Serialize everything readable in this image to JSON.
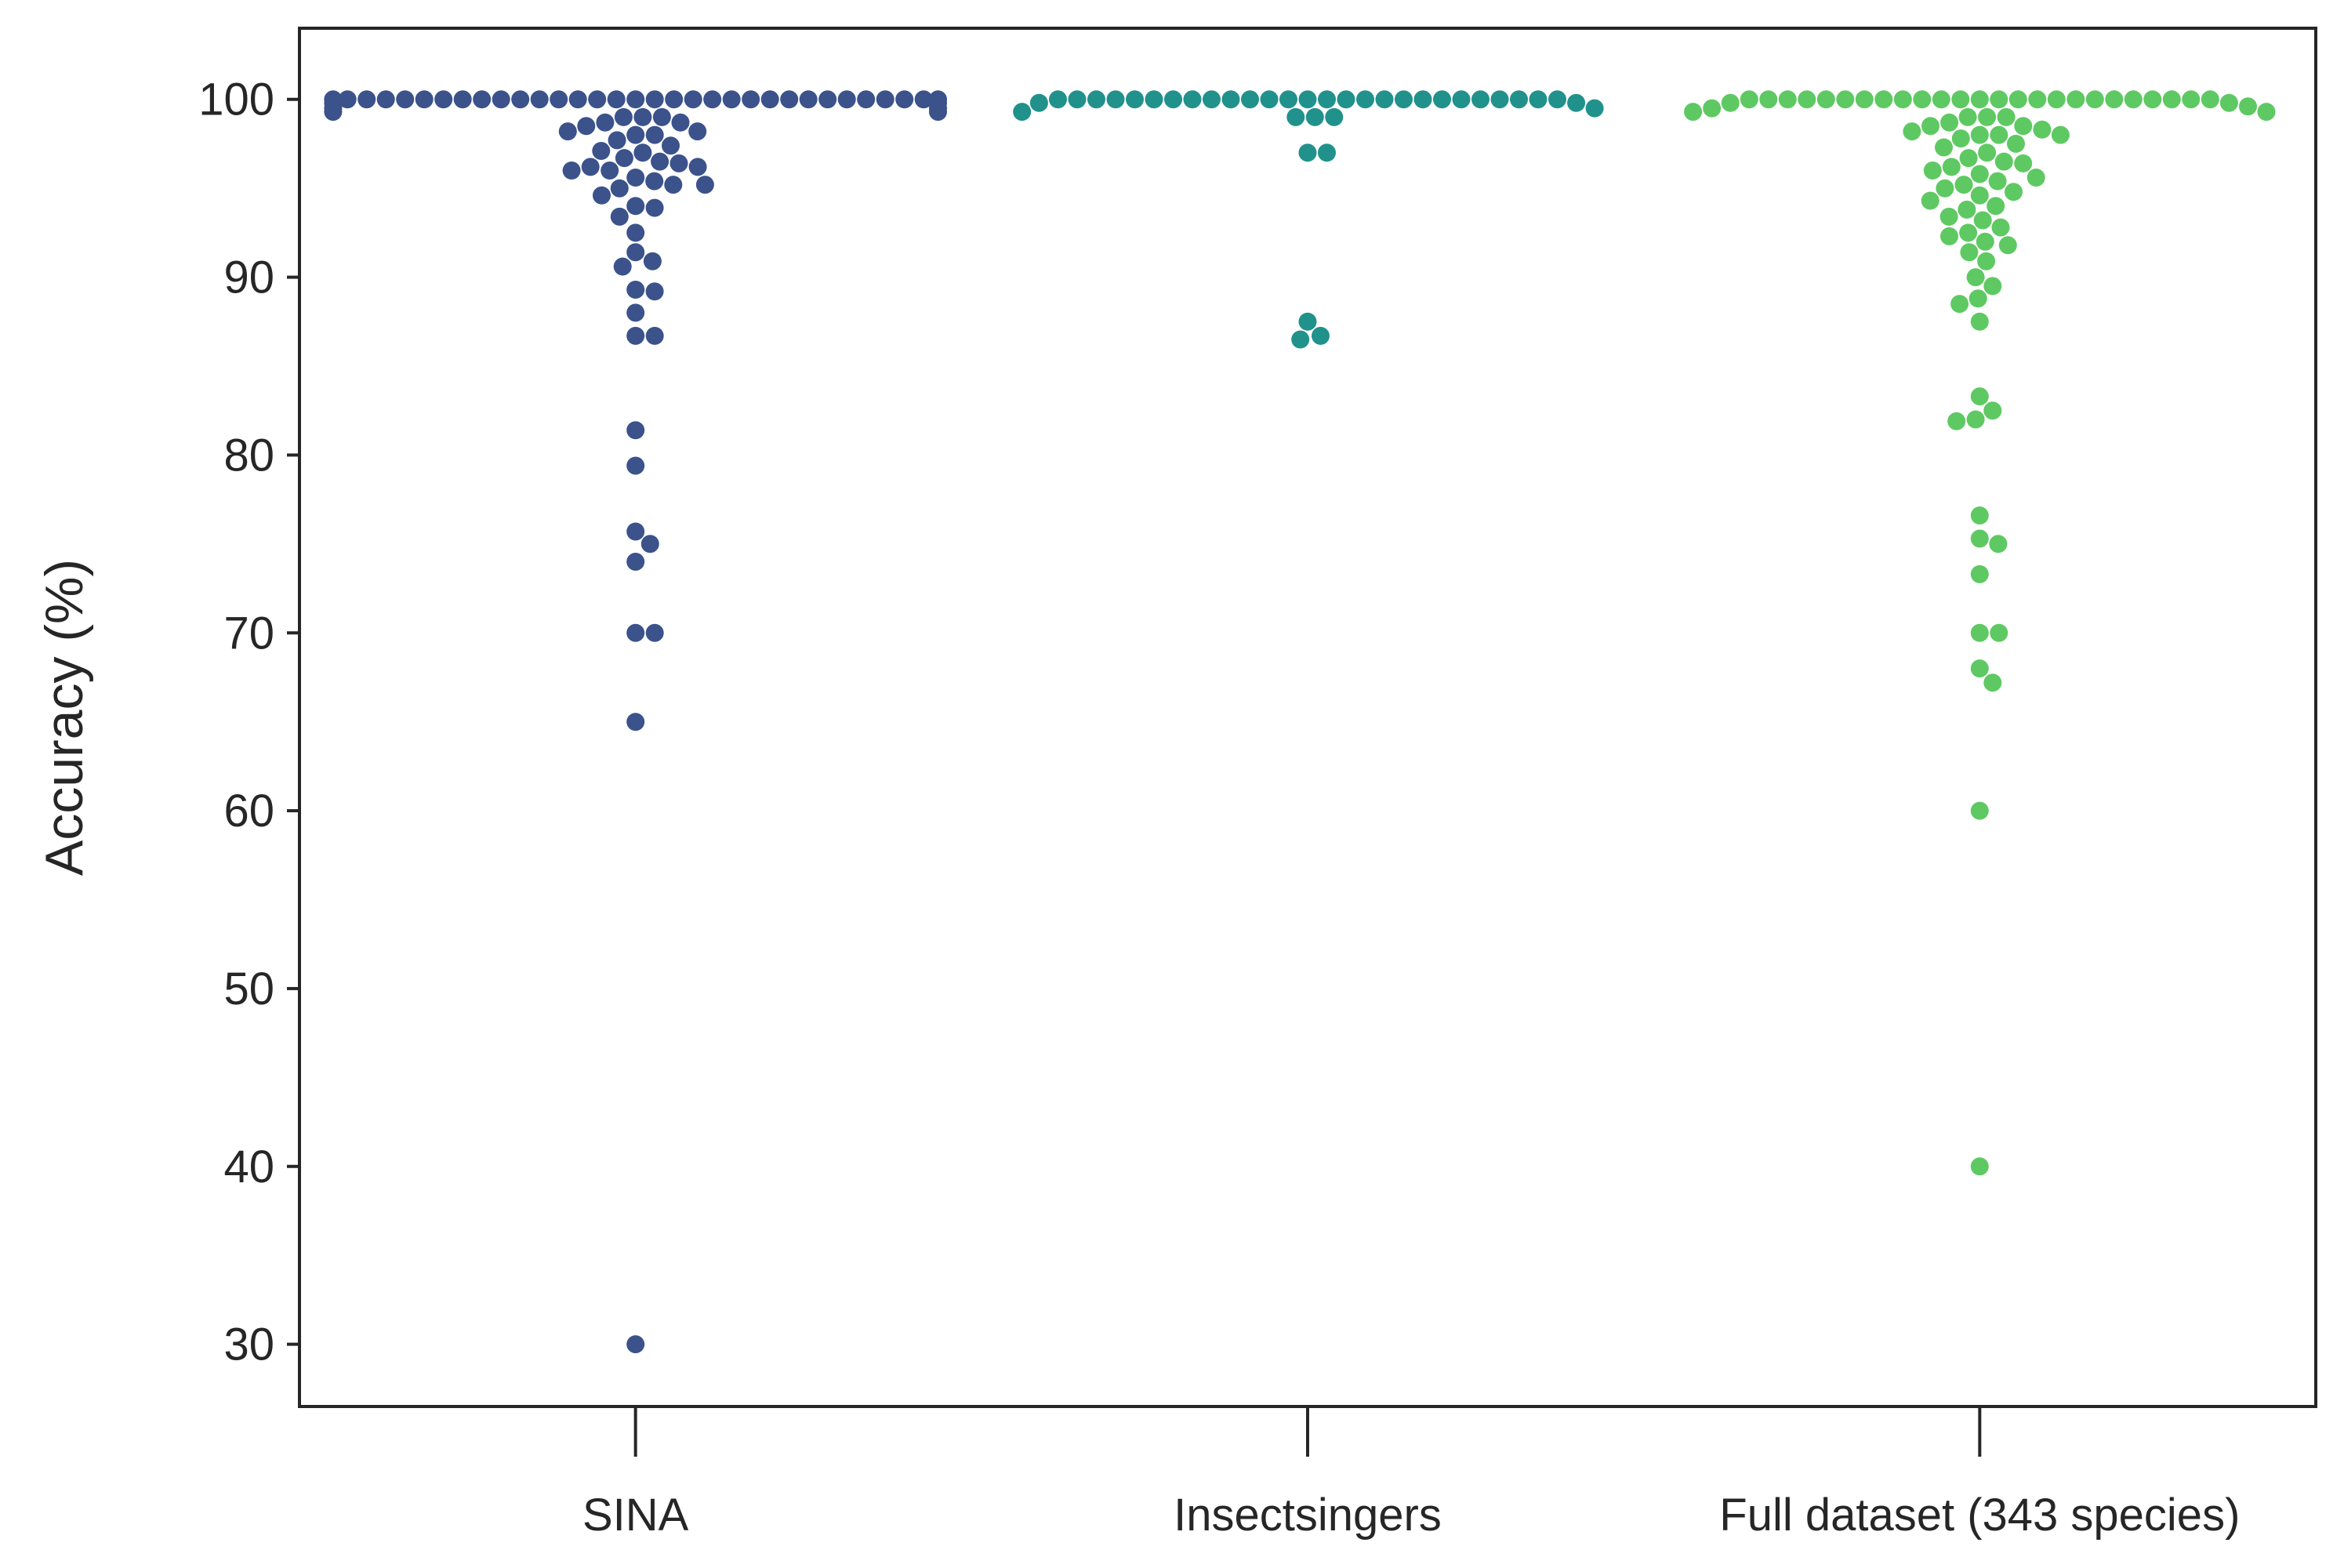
{
  "chart_data": {
    "type": "scatter",
    "subtype": "swarm",
    "ylabel": "Accuracy (%)",
    "xlabel": "",
    "ylim": [
      26.5,
      104
    ],
    "yticks": [
      30,
      40,
      50,
      60,
      70,
      80,
      90,
      100
    ],
    "grid": false,
    "legend": "none",
    "categories": [
      "SINA",
      "Insectsingers",
      "Full dataset (343 species)"
    ],
    "colors": [
      "#3b528b",
      "#21918c",
      "#5ec962"
    ],
    "series": [
      {
        "values": [
          100,
          100,
          100,
          100,
          100,
          100,
          100,
          100,
          100,
          100,
          100,
          100,
          100,
          100,
          100,
          100,
          100,
          100,
          100,
          100,
          100,
          100,
          100,
          100,
          100,
          100,
          100,
          100,
          100,
          100,
          100,
          100,
          100,
          99.8,
          99.8,
          99.5,
          99.5,
          99.3,
          99.3,
          99,
          99,
          99,
          98.7,
          98.7,
          98.5,
          98.2,
          98.2,
          98,
          98,
          97.7,
          97.4,
          97.1,
          97,
          96.7,
          96.5,
          96.4,
          96.2,
          96.2,
          96,
          96,
          95.6,
          95.4,
          95.2,
          95.2,
          95,
          94.6,
          94,
          93.9,
          93.4,
          92.5,
          91.4,
          90.9,
          90.6,
          89.3,
          89.2,
          88,
          86.7,
          86.7,
          81.4,
          79.4,
          75.7,
          75,
          74,
          70,
          70,
          65,
          30
        ]
      },
      {
        "values": [
          100,
          100,
          100,
          100,
          100,
          100,
          100,
          100,
          100,
          100,
          100,
          100,
          100,
          100,
          100,
          100,
          100,
          100,
          100,
          100,
          100,
          100,
          100,
          100,
          100,
          100,
          100,
          99.8,
          99.8,
          99.5,
          99.3,
          99,
          99,
          99,
          97,
          97,
          87.5,
          86.7,
          86.5
        ]
      },
      {
        "values": [
          100,
          100,
          100,
          100,
          100,
          100,
          100,
          100,
          100,
          100,
          100,
          100,
          100,
          100,
          100,
          100,
          100,
          100,
          100,
          100,
          100,
          100,
          100,
          100,
          100,
          99.8,
          99.8,
          99.6,
          99.5,
          99.3,
          99.3,
          99,
          99,
          99,
          98.7,
          98.5,
          98.5,
          98.3,
          98.2,
          98,
          98,
          98,
          97.8,
          97.5,
          97.3,
          97,
          96.7,
          96.5,
          96.4,
          96.2,
          96,
          95.8,
          95.6,
          95.4,
          95.2,
          95,
          94.8,
          94.6,
          94.3,
          94,
          93.8,
          93.4,
          93.2,
          92.8,
          92.5,
          92.3,
          92,
          91.8,
          91.4,
          90.9,
          90,
          89.5,
          88.8,
          88.5,
          87.5,
          83.3,
          82.5,
          82,
          81.9,
          76.6,
          75.3,
          75,
          73.3,
          70,
          70,
          68,
          67.2,
          60,
          40
        ]
      }
    ]
  }
}
